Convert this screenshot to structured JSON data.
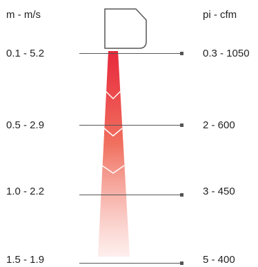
{
  "header": {
    "left": "m - m/s",
    "right": "pi - cfm"
  },
  "rows": [
    {
      "left": "0.1 - 5.2",
      "right": "0.3 - 1050"
    },
    {
      "left": "0.5 - 2.9",
      "right": "2 - 600"
    },
    {
      "left": "1.0 - 2.2",
      "right": "3 - 450"
    },
    {
      "left": "1.5 - 1.9",
      "right": "5 - 400"
    }
  ],
  "colors": {
    "throw_top": "#e8283c",
    "throw_bottom": "#fde8e6",
    "lines": "#555555",
    "diffuser_outline": "#555555"
  },
  "icons": {
    "diffuser": "diffuser-outline-icon"
  }
}
